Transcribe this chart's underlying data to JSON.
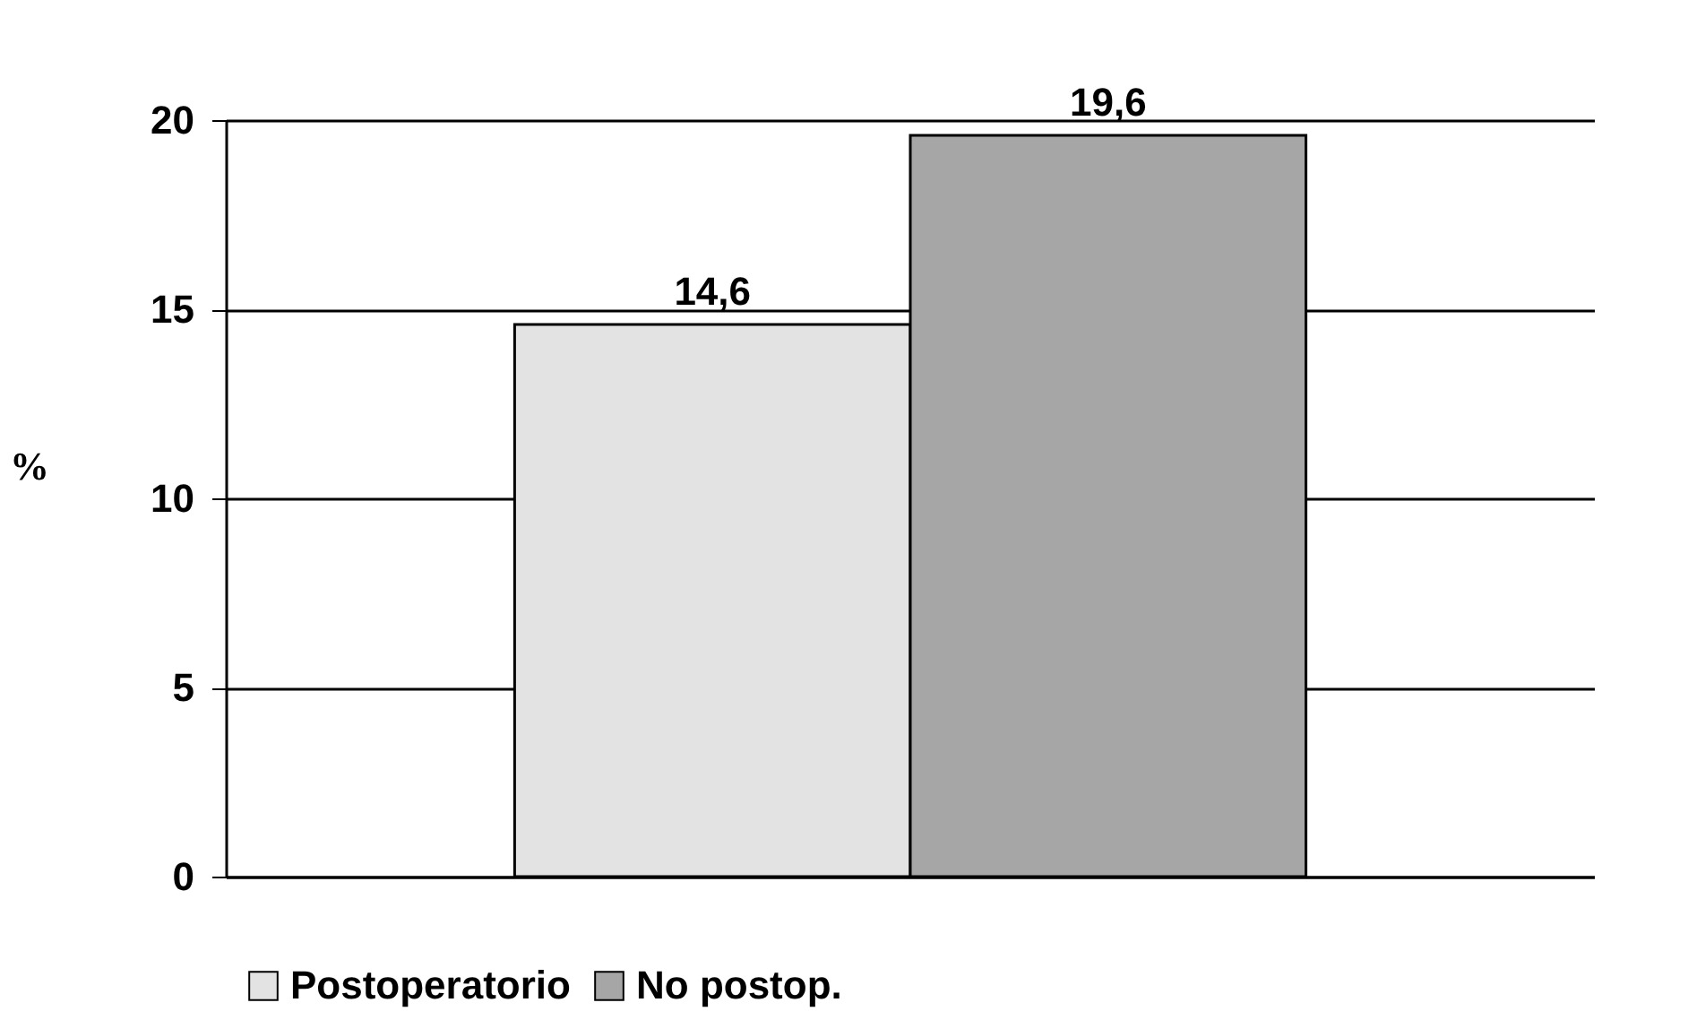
{
  "chart_data": {
    "type": "bar",
    "categories": [
      null
    ],
    "ylabel": "%",
    "series": [
      {
        "name": "Postoperatorio",
        "color": "#e3e3e3",
        "values": [
          14.6
        ],
        "value_labels": [
          "14,6"
        ]
      },
      {
        "name": "No postop.",
        "color": "#a6a6a6",
        "values": [
          19.6
        ],
        "value_labels": [
          "19,6"
        ]
      }
    ],
    "ylim": [
      0,
      20
    ],
    "yticks": [
      0,
      5,
      10,
      15,
      20
    ],
    "grid": "y",
    "legend": "bottom",
    "tick_labels": "y"
  }
}
